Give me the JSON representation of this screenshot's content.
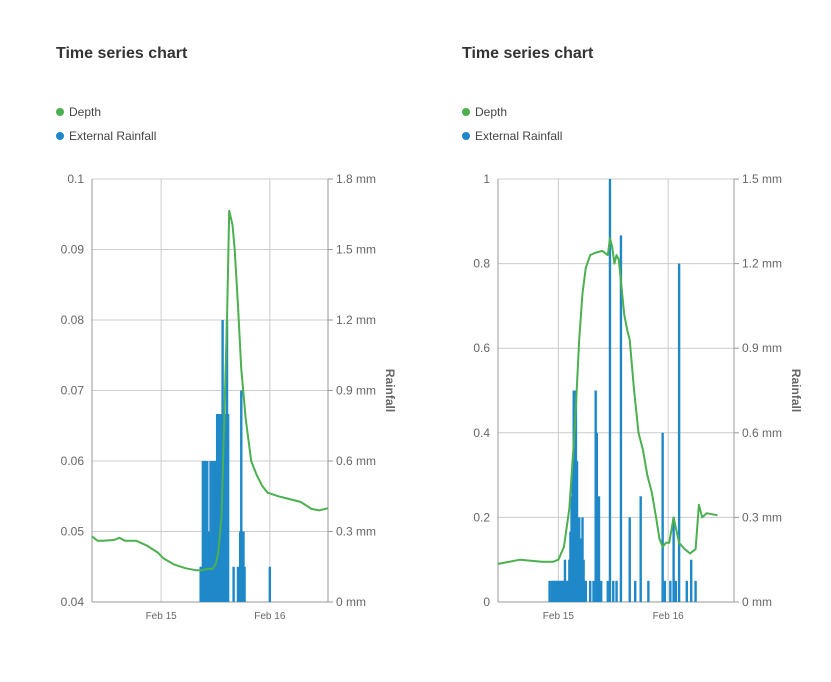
{
  "colors": {
    "depth": "#4caf50",
    "rainfall": "#1e88c8",
    "grid": "#cccccc"
  },
  "chart_data": [
    {
      "type": "bar+line",
      "title": "Time series chart",
      "legend": [
        "Depth",
        "External Rainfall"
      ],
      "legend_placement": "top-left",
      "grid": true,
      "x_ticks": [
        "Feb 15",
        "Feb 16"
      ],
      "y_left": {
        "range": [
          0.04,
          0.1
        ],
        "ticks": [
          "0.1",
          "0.09",
          "0.08",
          "0.07",
          "0.06",
          "0.05",
          "0.04"
        ]
      },
      "y_right": {
        "label": "Rainfall",
        "range": [
          0,
          1.8
        ],
        "ticks": [
          "1.8 mm",
          "1.5 mm",
          "1.2 mm",
          "0.9 mm",
          "0.6 mm",
          "0.3 mm",
          "0 mm"
        ]
      },
      "x_domain": [
        0,
        2.15
      ],
      "x_tick_positions": [
        0.63,
        1.62
      ],
      "series": [
        {
          "name": "Depth",
          "kind": "line",
          "x": [
            0,
            0.05,
            0.1,
            0.2,
            0.25,
            0.3,
            0.4,
            0.5,
            0.6,
            0.65,
            0.75,
            0.85,
            0.95,
            1.0,
            1.05,
            1.1,
            1.13,
            1.15,
            1.18,
            1.2,
            1.23,
            1.25,
            1.28,
            1.3,
            1.33,
            1.36,
            1.4,
            1.45,
            1.5,
            1.55,
            1.6,
            1.7,
            1.8,
            1.9,
            2.0,
            2.07,
            2.15
          ],
          "y": [
            0.0493,
            0.0487,
            0.0487,
            0.0488,
            0.0491,
            0.0487,
            0.0487,
            0.048,
            0.047,
            0.0462,
            0.0453,
            0.0448,
            0.0445,
            0.0445,
            0.0447,
            0.0447,
            0.0455,
            0.047,
            0.052,
            0.063,
            0.08,
            0.0955,
            0.0935,
            0.09,
            0.082,
            0.073,
            0.066,
            0.06,
            0.058,
            0.0565,
            0.0555,
            0.055,
            0.0546,
            0.0542,
            0.0532,
            0.053,
            0.0533
          ]
        },
        {
          "name": "External Rainfall",
          "kind": "bar",
          "x": [
            0.99,
            1.0,
            1.01,
            1.02,
            1.03,
            1.04,
            1.05,
            1.06,
            1.07,
            1.08,
            1.09,
            1.1,
            1.11,
            1.12,
            1.13,
            1.14,
            1.15,
            1.16,
            1.17,
            1.18,
            1.19,
            1.2,
            1.21,
            1.22,
            1.23,
            1.24,
            1.29,
            1.33,
            1.35,
            1.36,
            1.37,
            1.38,
            1.39,
            1.62
          ],
          "y": [
            0.15,
            0.15,
            0.6,
            0.15,
            0.6,
            0.15,
            0.6,
            0.3,
            0.3,
            0.6,
            0.15,
            0.6,
            0.6,
            0.6,
            0.6,
            0.8,
            0.8,
            0.8,
            0.8,
            0.8,
            1.2,
            0.8,
            0.8,
            0.8,
            1.2,
            0.8,
            0.15,
            0.15,
            0.3,
            0.9,
            0.3,
            0.3,
            0.15,
            0.15
          ]
        }
      ]
    },
    {
      "type": "bar+line",
      "title": "Time series chart",
      "legend": [
        "Depth",
        "External Rainfall"
      ],
      "legend_placement": "top-left",
      "grid": true,
      "x_ticks": [
        "Feb 15",
        "Feb 16"
      ],
      "y_left": {
        "range": [
          0,
          1
        ],
        "ticks": [
          "1",
          "0.8",
          "0.6",
          "0.4",
          "0.2",
          "0"
        ]
      },
      "y_right": {
        "label": "Rainfall",
        "range": [
          0,
          1.5
        ],
        "ticks": [
          "1.5 mm",
          "1.2 mm",
          "0.9 mm",
          "0.6 mm",
          "0.3 mm",
          "0 mm"
        ]
      },
      "x_domain": [
        0,
        2.15
      ],
      "x_tick_positions": [
        0.55,
        1.55
      ],
      "series": [
        {
          "name": "Depth",
          "kind": "line",
          "x": [
            0,
            0.2,
            0.4,
            0.5,
            0.55,
            0.6,
            0.65,
            0.7,
            0.74,
            0.77,
            0.8,
            0.84,
            0.88,
            0.95,
            1.0,
            1.02,
            1.04,
            1.06,
            1.08,
            1.1,
            1.12,
            1.15,
            1.18,
            1.2,
            1.22,
            1.24,
            1.28,
            1.32,
            1.36,
            1.4,
            1.44,
            1.47,
            1.5,
            1.53,
            1.56,
            1.6,
            1.65,
            1.7,
            1.75,
            1.8,
            1.83,
            1.86,
            1.9,
            2.0
          ],
          "y": [
            0.09,
            0.1,
            0.095,
            0.095,
            0.1,
            0.13,
            0.22,
            0.41,
            0.62,
            0.73,
            0.79,
            0.82,
            0.825,
            0.83,
            0.82,
            0.86,
            0.84,
            0.8,
            0.82,
            0.81,
            0.76,
            0.68,
            0.64,
            0.62,
            0.56,
            0.5,
            0.4,
            0.36,
            0.3,
            0.26,
            0.2,
            0.15,
            0.13,
            0.14,
            0.14,
            0.2,
            0.14,
            0.125,
            0.115,
            0.125,
            0.23,
            0.2,
            0.21,
            0.205
          ]
        },
        {
          "name": "External Rainfall",
          "kind": "bar",
          "x": [
            0.47,
            0.49,
            0.5,
            0.51,
            0.52,
            0.53,
            0.54,
            0.55,
            0.56,
            0.57,
            0.58,
            0.59,
            0.6,
            0.61,
            0.62,
            0.63,
            0.64,
            0.65,
            0.66,
            0.67,
            0.68,
            0.69,
            0.7,
            0.71,
            0.72,
            0.73,
            0.74,
            0.75,
            0.76,
            0.77,
            0.78,
            0.79,
            0.8,
            0.84,
            0.87,
            0.89,
            0.9,
            0.91,
            0.92,
            0.94,
            1.0,
            1.02,
            1.05,
            1.08,
            1.12,
            1.2,
            1.25,
            1.3,
            1.37,
            1.5,
            1.52,
            1.57,
            1.6,
            1.62,
            1.65,
            1.72,
            1.76,
            1.8
          ],
          "y": [
            0.075,
            0.075,
            0.075,
            0.075,
            0.075,
            0.075,
            0.075,
            0.075,
            0.075,
            0.075,
            0.075,
            0.075,
            0.075,
            0.15,
            0.075,
            0.075,
            0.075,
            0.15,
            0.25,
            0.375,
            0.5,
            0.75,
            0.5,
            0.75,
            0.5,
            0.15,
            0.3,
            0.225,
            0.225,
            0.3,
            0.15,
            0.075,
            0.075,
            0.075,
            0.075,
            0.75,
            0.6,
            0.15,
            0.375,
            0.075,
            0.075,
            1.5,
            0.075,
            0.075,
            1.3,
            0.3,
            0.075,
            0.375,
            0.075,
            0.6,
            0.075,
            0.075,
            0.3,
            0.075,
            1.2,
            0.075,
            0.15,
            0.075
          ]
        }
      ]
    }
  ]
}
